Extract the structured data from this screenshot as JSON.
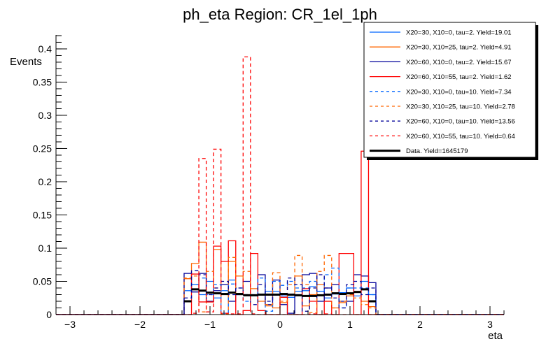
{
  "chart_data": {
    "type": "line",
    "title": "ph_eta Region: CR_1el_1ph",
    "xlabel": "eta",
    "ylabel": "Events",
    "xlim": [
      -3.2,
      3.2
    ],
    "ylim": [
      0,
      0.421
    ],
    "grid": false,
    "legend_position": "top-right",
    "x_ticks": [
      "-3",
      "-2",
      "-1",
      "0",
      "1",
      "2",
      "3"
    ],
    "y_ticks": [
      "0",
      "0.05",
      "0.1",
      "0.15",
      "0.2",
      "0.25",
      "0.3",
      "0.35",
      "0.4"
    ],
    "bin_range": [
      -1.37,
      1.37
    ],
    "n_bins": 26,
    "series": [
      {
        "name": "X20=30, X10=0, tau=2. Yield=19.01",
        "color": "#0066ff",
        "dash": false,
        "values": [
          0.036,
          0.045,
          0.03,
          0.05,
          0.025,
          0.036,
          0.052,
          0.03,
          0.03,
          0.028,
          0.03,
          0.035,
          0.035,
          0.028,
          0.026,
          0.035,
          0.036,
          0.042,
          0.035,
          0.025,
          0.031,
          0.033,
          0.04,
          0.028,
          0.05,
          0.03
        ]
      },
      {
        "name": "X20=30, X10=25, tau=2. Yield=4.91",
        "color": "#ff6600",
        "dash": false,
        "values": [
          0.054,
          0.077,
          0.109,
          0.019,
          0.098,
          0.03,
          0.08,
          0.058,
          0.03,
          0.039,
          0.02,
          0.013,
          0.01,
          0.018,
          0.03,
          0.058,
          0.013,
          0.03,
          0.045,
          0.02,
          0.01,
          0.018,
          0.028,
          0.035,
          0.02,
          0.012
        ]
      },
      {
        "name": "X20=60, X10=0, tau=2. Yield=15.67",
        "color": "#000099",
        "dash": false,
        "values": [
          0.062,
          0.034,
          0.062,
          0.02,
          0.036,
          0.045,
          0.02,
          0.03,
          0.05,
          0.03,
          0.06,
          0.015,
          0.052,
          0.015,
          0.002,
          0.03,
          0.06,
          0.062,
          0.02,
          0.04,
          0.045,
          0.02,
          0.02,
          0.06,
          0.058,
          0.048
        ]
      },
      {
        "name": "X20=60, X10=55, tau=2. Yield=1.62",
        "color": "#ff0000",
        "dash": false,
        "values": [
          0,
          0.061,
          0.019,
          0.019,
          0.103,
          0.08,
          0.111,
          0.0,
          0.006,
          0.092,
          0.006,
          0,
          0,
          0.026,
          0,
          0,
          0.039,
          0.02,
          0,
          0.02,
          0,
          0.092,
          0.092,
          0,
          0.246,
          0
        ]
      },
      {
        "name": "X20=30, X10=0, tau=10. Yield=7.34",
        "color": "#0066ff",
        "dash": true,
        "values": [
          0.02,
          0.045,
          0.055,
          0.03,
          0.045,
          0.002,
          0.046,
          0.04,
          0.02,
          0.03,
          0.055,
          0.005,
          0.05,
          0.044,
          0.05,
          0.04,
          0.04,
          0.05,
          0.035,
          0.06,
          0.07,
          0.01,
          0.04,
          0.04,
          0.04,
          0.03
        ]
      },
      {
        "name": "X20=30, X10=25, tau=10. Yield=2.78",
        "color": "#ff6600",
        "dash": true,
        "values": [
          0.055,
          0.058,
          0.004,
          0.065,
          0.04,
          0.001,
          0.086,
          0.03,
          0.065,
          0.03,
          0.03,
          0.015,
          0.063,
          0.02,
          0.045,
          0.089,
          0.045,
          0.003,
          0.065,
          0.089,
          0.01,
          0.02,
          0.03,
          0.025,
          0.015,
          0.01
        ]
      },
      {
        "name": "X20=60, X10=0, tau=10. Yield=13.56",
        "color": "#000099",
        "dash": true,
        "values": [
          0.025,
          0.066,
          0.06,
          0.03,
          0.04,
          0.05,
          0.03,
          0.04,
          0.03,
          0.015,
          0.045,
          0.02,
          0.03,
          0.03,
          0.055,
          0.045,
          0.005,
          0.04,
          0.06,
          0.04,
          0.025,
          0.01,
          0.045,
          0.05,
          0.03,
          0.04
        ]
      },
      {
        "name": "X20=60, X10=55, tau=10. Yield=0.64",
        "color": "#ff0000",
        "dash": true,
        "values": [
          0,
          0.002,
          0.235,
          0.004,
          0.249,
          0.002,
          0.001,
          0.001,
          0.388,
          0.001,
          0,
          0,
          0,
          0,
          0,
          0,
          0,
          0.001,
          0,
          0.001,
          0,
          0,
          0,
          0,
          0,
          0
        ]
      },
      {
        "name": "Data. Yield=1645179",
        "color": "#000000",
        "dash": false,
        "thick": true,
        "values": [
          0.02,
          0.038,
          0.036,
          0.033,
          0.032,
          0.031,
          0.033,
          0.031,
          0.029,
          0.029,
          0.03,
          0.03,
          0.03,
          0.031,
          0.03,
          0.029,
          0.028,
          0.028,
          0.029,
          0.03,
          0.032,
          0.031,
          0.032,
          0.034,
          0.038,
          0.02
        ]
      }
    ]
  }
}
